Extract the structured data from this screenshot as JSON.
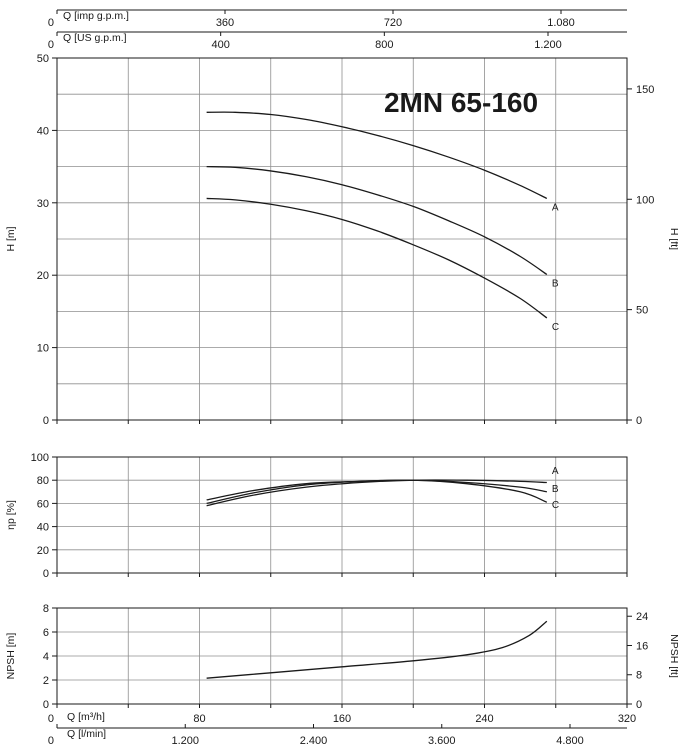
{
  "chart_data": {
    "type": "line",
    "title": "2MN 65-160",
    "top_axes": [
      {
        "label": "Q [imp g.p.m.]",
        "zero": "0",
        "ticks": [
          {
            "v": 360,
            "t": "360"
          },
          {
            "v": 720,
            "t": "720"
          },
          {
            "v": 1080,
            "t": "1.080"
          }
        ]
      },
      {
        "label": "Q [US g.p.m.]",
        "zero": "0",
        "ticks": [
          {
            "v": 400,
            "t": "400"
          },
          {
            "v": 800,
            "t": "800"
          },
          {
            "v": 1200,
            "t": "1.200"
          }
        ]
      }
    ],
    "bottom_axes": [
      {
        "label": "Q [m³/h]",
        "zero": "0",
        "ticks": [
          {
            "v": 80,
            "t": "80"
          },
          {
            "v": 160,
            "t": "160"
          },
          {
            "v": 240,
            "t": "240"
          },
          {
            "v": 320,
            "t": "320"
          }
        ]
      },
      {
        "label": "Q [l/min]",
        "zero": "0",
        "ticks": [
          {
            "v": 1200,
            "t": "1.200"
          },
          {
            "v": 2400,
            "t": "2.400"
          },
          {
            "v": 3600,
            "t": "3.600"
          },
          {
            "v": 4800,
            "t": "4.800"
          }
        ]
      }
    ],
    "xlim": [
      0,
      320
    ],
    "panels": [
      {
        "id": "head",
        "ylabel": "H [m]",
        "ylabel_right": "H [ft]",
        "ylim": [
          0,
          50
        ],
        "yticks": [
          0,
          10,
          20,
          30,
          40,
          50
        ],
        "ylim_right": [
          0,
          164
        ],
        "yticks_right": [
          0,
          50,
          100,
          150
        ],
        "series": [
          {
            "name": "A",
            "x": [
              84,
              100,
              120,
              140,
              160,
              180,
              200,
              220,
              240,
              260,
              275
            ],
            "y": [
              42.5,
              42.5,
              42.2,
              41.5,
              40.5,
              39.3,
              37.9,
              36.3,
              34.5,
              32.4,
              30.6
            ]
          },
          {
            "name": "B",
            "x": [
              84,
              100,
              120,
              140,
              160,
              180,
              200,
              220,
              240,
              260,
              275
            ],
            "y": [
              35.0,
              34.9,
              34.4,
              33.6,
              32.5,
              31.1,
              29.5,
              27.5,
              25.3,
              22.6,
              20.1
            ]
          },
          {
            "name": "C",
            "x": [
              84,
              100,
              120,
              140,
              160,
              180,
              200,
              220,
              240,
              260,
              275
            ],
            "y": [
              30.6,
              30.4,
              29.8,
              28.9,
              27.7,
              26.1,
              24.2,
              22.1,
              19.6,
              16.8,
              14.1
            ]
          }
        ]
      },
      {
        "id": "efficiency",
        "ylabel": "ηp [%]",
        "ylim": [
          0,
          100
        ],
        "yticks": [
          0,
          20,
          40,
          60,
          80,
          100
        ],
        "series": [
          {
            "name": "A",
            "x": [
              84,
              110,
              140,
              170,
              200,
              230,
              260,
              275
            ],
            "y": [
              58,
              67,
              74,
              78,
              80,
              80,
              79,
              78
            ]
          },
          {
            "name": "B",
            "x": [
              84,
              110,
              140,
              170,
              200,
              230,
              260,
              275
            ],
            "y": [
              60,
              69,
              76,
              79,
              80,
              78,
              74,
              70
            ]
          },
          {
            "name": "C",
            "x": [
              84,
              110,
              140,
              170,
              200,
              230,
              260,
              275
            ],
            "y": [
              63,
              71,
              77,
              79,
              80,
              77,
              70,
              61
            ]
          }
        ]
      },
      {
        "id": "npsh",
        "ylabel": "NPSH [m]",
        "ylabel_right": "NPSH [ft]",
        "ylim": [
          0,
          8
        ],
        "yticks": [
          0,
          2,
          4,
          6,
          8
        ],
        "ylim_right": [
          0,
          26.25
        ],
        "yticks_right": [
          0,
          8,
          16,
          24
        ],
        "series": [
          {
            "name": "",
            "x": [
              84,
              120,
              160,
              200,
              230,
              250,
              265,
              275
            ],
            "y": [
              2.15,
              2.6,
              3.1,
              3.6,
              4.1,
              4.7,
              5.7,
              6.9
            ]
          }
        ]
      }
    ]
  }
}
